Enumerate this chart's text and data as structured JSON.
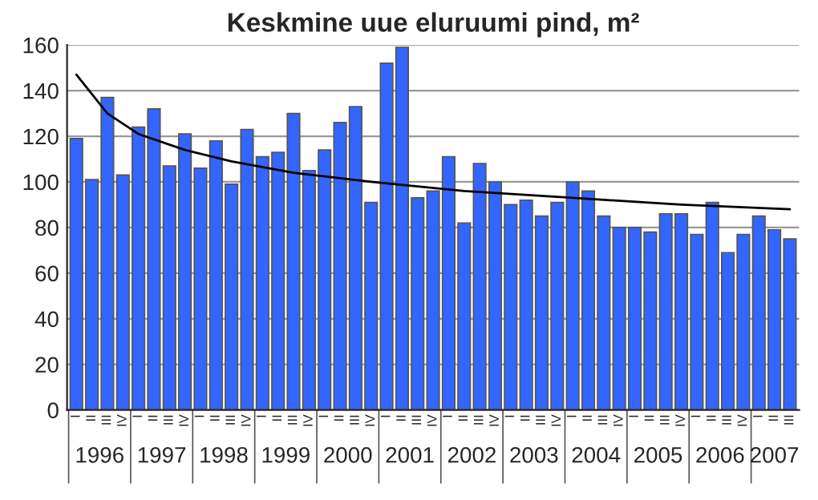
{
  "chart_data": {
    "type": "bar",
    "title": "Keskmine uue eluruumi pind, m²",
    "categories": [
      "I",
      "II",
      "III",
      "IV",
      "I",
      "II",
      "III",
      "IV",
      "I",
      "II",
      "III",
      "IV",
      "I",
      "II",
      "III",
      "IV",
      "I",
      "II",
      "III",
      "IV",
      "I",
      "II",
      "III",
      "IV",
      "I",
      "II",
      "III",
      "IV",
      "I",
      "II",
      "III",
      "IV",
      "I",
      "II",
      "III",
      "IV",
      "I",
      "II",
      "III",
      "IV",
      "I",
      "II",
      "III",
      "IV",
      "I",
      "II",
      "III"
    ],
    "annotations": [
      "1996",
      "1997",
      "1998",
      "1999",
      "2000",
      "2001",
      "2002",
      "2003",
      "2004",
      "2005",
      "2006",
      "2007"
    ],
    "series": [
      {
        "color": "#3366ff",
        "values": [
          119,
          101,
          137,
          103,
          124,
          132,
          107,
          121,
          106,
          118,
          99,
          123,
          111,
          113,
          130,
          105,
          114,
          126,
          133,
          91,
          152,
          159,
          93,
          96,
          111,
          82,
          108,
          100,
          90,
          92,
          85,
          91,
          100,
          96,
          85,
          80,
          80,
          78,
          86,
          86,
          77,
          91,
          69,
          77,
          85,
          79,
          75
        ]
      },
      {
        "type": "line",
        "color": "#000000",
        "values": [
          147,
          null,
          130,
          null,
          121,
          null,
          null,
          114,
          null,
          null,
          109,
          null,
          null,
          null,
          104,
          null,
          null,
          null,
          null,
          100,
          null,
          null,
          null,
          null,
          null,
          96,
          null,
          null,
          null,
          null,
          null,
          null,
          93,
          null,
          null,
          null,
          null,
          null,
          null,
          90,
          null,
          null,
          null,
          null,
          null,
          null,
          88
        ]
      }
    ],
    "ylim": [
      0,
      160
    ],
    "yticks": [
      0,
      20,
      40,
      60,
      80,
      100,
      120,
      140,
      160
    ],
    "grid": "y",
    "legend": false
  }
}
